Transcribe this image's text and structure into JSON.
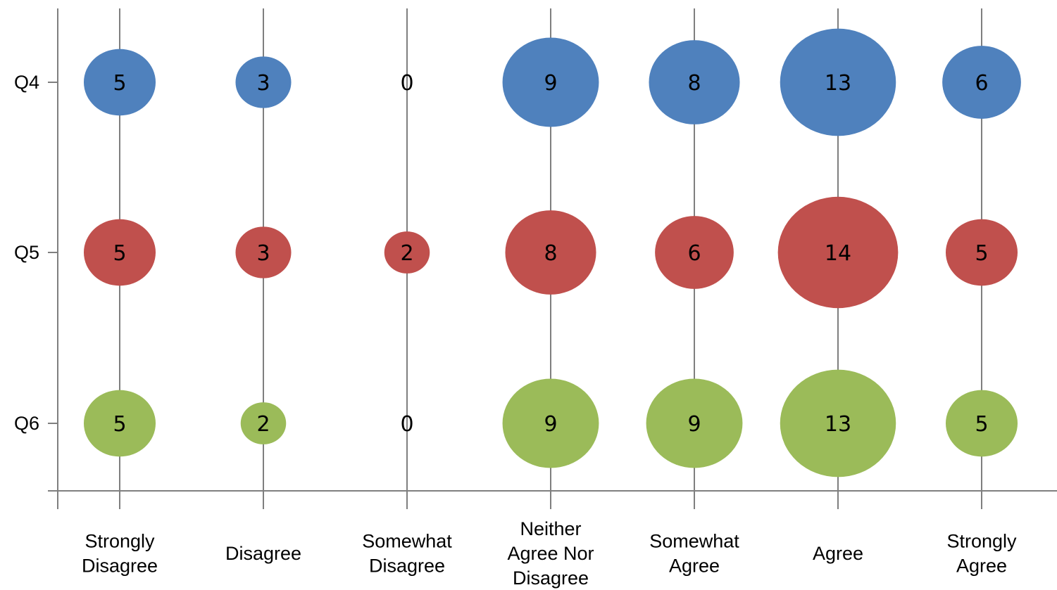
{
  "chart_data": {
    "type": "bubble",
    "categories": [
      [
        "Strongly",
        "Disagree"
      ],
      [
        "Disagree"
      ],
      [
        "Somewhat",
        "Disagree"
      ],
      [
        "Neither",
        "Agree Nor",
        "Disagree"
      ],
      [
        "Somewhat",
        "Agree"
      ],
      [
        "Agree"
      ],
      [
        "Strongly",
        "Agree"
      ]
    ],
    "series": [
      {
        "name": "Q4",
        "color": "#4f81bd",
        "values": [
          5,
          3,
          0,
          9,
          8,
          13,
          6
        ]
      },
      {
        "name": "Q5",
        "color": "#c0504d",
        "values": [
          5,
          3,
          2,
          8,
          6,
          14,
          5
        ]
      },
      {
        "name": "Q6",
        "color": "#9bbb59",
        "values": [
          5,
          2,
          0,
          9,
          9,
          13,
          5
        ]
      }
    ],
    "data_labels": true,
    "grid": "vertical",
    "legend": "none"
  }
}
